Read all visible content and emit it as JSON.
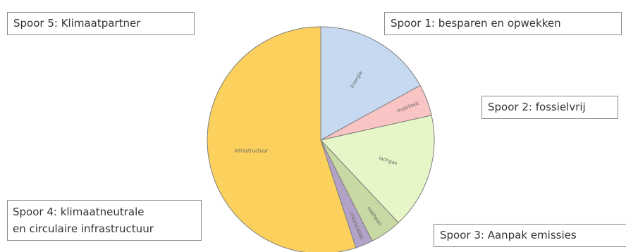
{
  "chart_data": {
    "type": "pie",
    "title": "",
    "slices": [
      {
        "label": "Energie",
        "value": 17.0,
        "color": "#c6d9f1"
      },
      {
        "label": "mobiliteit",
        "value": 4.5,
        "color": "#f9c4c4"
      },
      {
        "label": "lachgas",
        "value": 16.5,
        "color": "#e7f6c6"
      },
      {
        "label": "methaan",
        "value": 4.5,
        "color": "#c9d9a4"
      },
      {
        "label": "chemicaliën",
        "value": 2.5,
        "color": "#b3a2c7"
      },
      {
        "label": "infrastructuur",
        "value": 55.0,
        "color": "#fcd05c"
      }
    ],
    "start_angle_deg": 0,
    "direction": "clockwise",
    "legend": "none",
    "stroke_color": "#7f7f7f"
  },
  "annotations": {
    "spoor5": "Spoor 5: Klimaatpartner",
    "spoor1": "Spoor 1: besparen en opwekken",
    "spoor2": "Spoor 2: fossielvrij",
    "spoor4_line1": "Spoor 4: klimaatneutrale",
    "spoor4_line2": "en circulaire infrastructuur",
    "spoor3": "Spoor 3: Aanpak emissies"
  }
}
